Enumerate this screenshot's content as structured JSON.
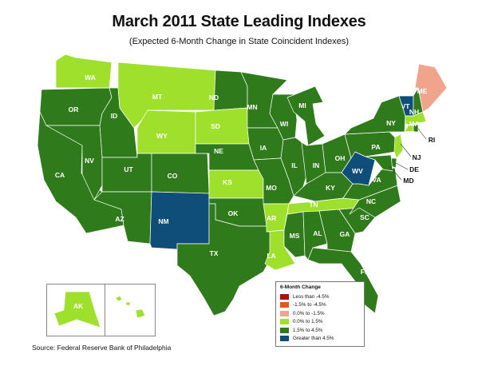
{
  "title": "March 2011 State Leading Indexes",
  "subtitle": "(Expected 6-Month Change in State Coincident Indexes)",
  "source": "Source: Federal Reserve Bank of Philadelphia",
  "colors": {
    "less_than_neg45": "#aa1010",
    "neg15_to_neg45": "#e8561f",
    "zero_to_neg15": "#f0a48c",
    "zero_to_15": "#9fe02c",
    "15_to_45": "#2f7a1b",
    "greater_than_45": "#0e4e78"
  },
  "legend": {
    "title": "6-Month Change",
    "items": [
      {
        "label": "Less than -4.5%",
        "color": "#aa1010"
      },
      {
        "label": "-1.5% to -4.5%",
        "color": "#e8561f"
      },
      {
        "label": "0.0% to -1.5%",
        "color": "#f0a48c"
      },
      {
        "label": "0.0% to  1.5%",
        "color": "#9fe02c"
      },
      {
        "label": "1.5% to  4.5%",
        "color": "#2f7a1b"
      },
      {
        "label": "Greater than 4.5%",
        "color": "#0e4e78"
      }
    ]
  },
  "states": [
    {
      "abbr": "WA",
      "category": "0.0% to  1.5%"
    },
    {
      "abbr": "OR",
      "category": "1.5% to  4.5%"
    },
    {
      "abbr": "CA",
      "category": "1.5% to  4.5%"
    },
    {
      "abbr": "ID",
      "category": "1.5% to  4.5%"
    },
    {
      "abbr": "NV",
      "category": "1.5% to  4.5%"
    },
    {
      "abbr": "MT",
      "category": "0.0% to  1.5%"
    },
    {
      "abbr": "WY",
      "category": "0.0% to  1.5%"
    },
    {
      "abbr": "UT",
      "category": "1.5% to  4.5%"
    },
    {
      "abbr": "AZ",
      "category": "1.5% to  4.5%"
    },
    {
      "abbr": "CO",
      "category": "1.5% to  4.5%"
    },
    {
      "abbr": "NM",
      "category": "Greater than 4.5%"
    },
    {
      "abbr": "ND",
      "category": "1.5% to  4.5%"
    },
    {
      "abbr": "SD",
      "category": "0.0% to  1.5%"
    },
    {
      "abbr": "NE",
      "category": "1.5% to  4.5%"
    },
    {
      "abbr": "KS",
      "category": "0.0% to  1.5%"
    },
    {
      "abbr": "OK",
      "category": "1.5% to  4.5%"
    },
    {
      "abbr": "TX",
      "category": "1.5% to  4.5%"
    },
    {
      "abbr": "MN",
      "category": "1.5% to  4.5%"
    },
    {
      "abbr": "IA",
      "category": "1.5% to  4.5%"
    },
    {
      "abbr": "MO",
      "category": "1.5% to  4.5%"
    },
    {
      "abbr": "AR",
      "category": "0.0% to  1.5%"
    },
    {
      "abbr": "LA",
      "category": "0.0% to  1.5%"
    },
    {
      "abbr": "WI",
      "category": "1.5% to  4.5%"
    },
    {
      "abbr": "IL",
      "category": "1.5% to  4.5%"
    },
    {
      "abbr": "MS",
      "category": "1.5% to  4.5%"
    },
    {
      "abbr": "MI",
      "category": "1.5% to  4.5%"
    },
    {
      "abbr": "IN",
      "category": "1.5% to  4.5%"
    },
    {
      "abbr": "OH",
      "category": "1.5% to  4.5%"
    },
    {
      "abbr": "KY",
      "category": "1.5% to  4.5%"
    },
    {
      "abbr": "TN",
      "category": "0.0% to  1.5%"
    },
    {
      "abbr": "AL",
      "category": "1.5% to  4.5%"
    },
    {
      "abbr": "GA",
      "category": "1.5% to  4.5%"
    },
    {
      "abbr": "FL",
      "category": "1.5% to  4.5%"
    },
    {
      "abbr": "SC",
      "category": "1.5% to  4.5%"
    },
    {
      "abbr": "NC",
      "category": "1.5% to  4.5%"
    },
    {
      "abbr": "VA",
      "category": "1.5% to  4.5%"
    },
    {
      "abbr": "WV",
      "category": "Greater than 4.5%"
    },
    {
      "abbr": "PA",
      "category": "1.5% to  4.5%"
    },
    {
      "abbr": "NY",
      "category": "1.5% to  4.5%"
    },
    {
      "abbr": "VT",
      "category": "Greater than 4.5%"
    },
    {
      "abbr": "NH",
      "category": "1.5% to  4.5%"
    },
    {
      "abbr": "ME",
      "category": "0.0% to -1.5%"
    },
    {
      "abbr": "MA",
      "category": "0.0% to  1.5%"
    },
    {
      "abbr": "CT",
      "category": "0.0% to  1.5%"
    },
    {
      "abbr": "RI",
      "category": "1.5% to  4.5%"
    },
    {
      "abbr": "NJ",
      "category": "0.0% to  1.5%"
    },
    {
      "abbr": "DE",
      "category": "1.5% to  4.5%"
    },
    {
      "abbr": "MD",
      "category": "1.5% to  4.5%"
    },
    {
      "abbr": "AK",
      "category": "0.0% to  1.5%"
    },
    {
      "abbr": "HI",
      "category": "0.0% to  1.5%"
    }
  ]
}
